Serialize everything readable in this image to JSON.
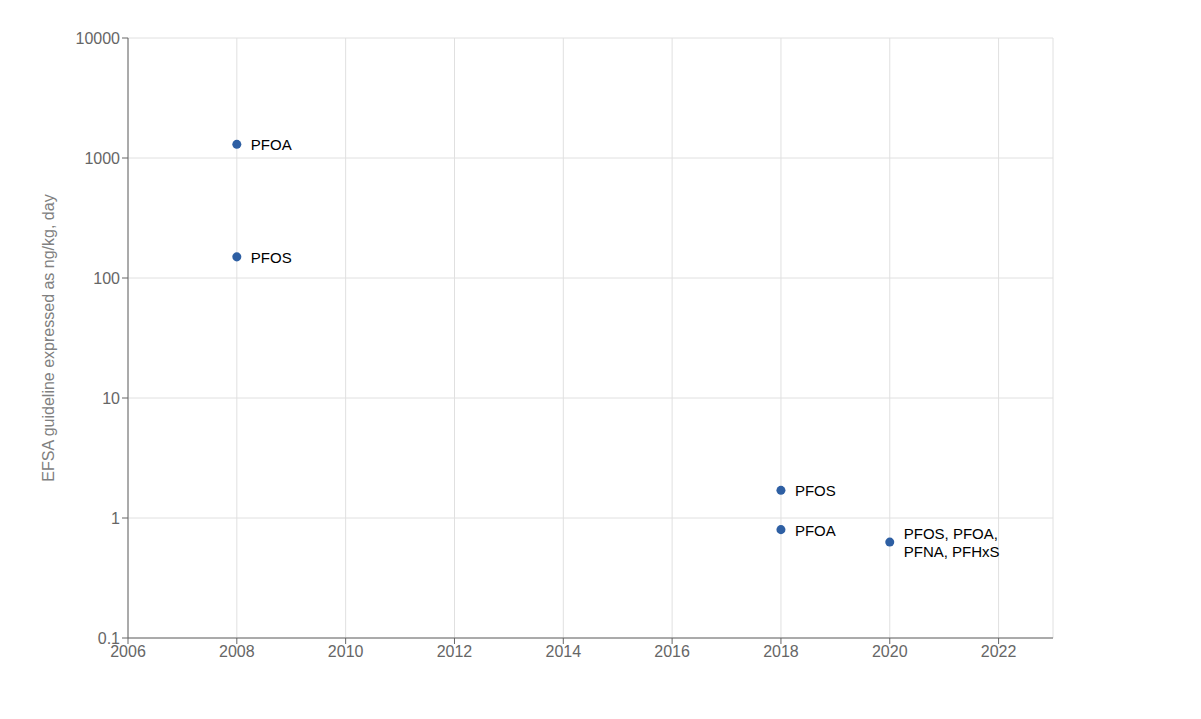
{
  "chart_data": {
    "type": "scatter",
    "ylabel": "EFSA guideline expressed as ng/kg, day",
    "x": [
      2008,
      2008,
      2018,
      2018,
      2020
    ],
    "values": [
      1300,
      150,
      1.7,
      0.8,
      0.63
    ],
    "color": "#2E5FA3",
    "annotations": [
      {
        "x": 2008,
        "y": 1300,
        "text": "PFOA"
      },
      {
        "x": 2008,
        "y": 150,
        "text": "PFOS"
      },
      {
        "x": 2018,
        "y": 1.7,
        "text": "PFOS"
      },
      {
        "x": 2018,
        "y": 0.8,
        "text": "PFOA"
      },
      {
        "x": 2020,
        "y": 0.63,
        "text": "PFOS, PFOA,\nPFNA, PFHxS"
      }
    ],
    "xlim": [
      2006,
      2023
    ],
    "ylim": [
      0.1,
      10000
    ],
    "xticks": [
      2006,
      2008,
      2010,
      2012,
      2014,
      2016,
      2018,
      2020,
      2022
    ],
    "yticks": [
      0.1,
      1,
      10,
      100,
      1000,
      10000
    ],
    "log": "y",
    "grid": true
  }
}
